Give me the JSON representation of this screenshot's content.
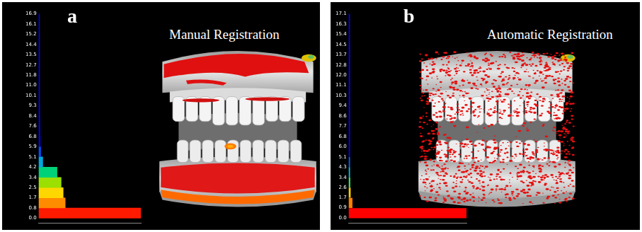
{
  "chart_data": [
    {
      "type": "histogram",
      "title": "Manual Registration",
      "annotations": [
        "a"
      ],
      "orientation": "horizontal",
      "grid": false,
      "tick_labels": "y",
      "bins": [
        0,
        0.845,
        1.69,
        2.535,
        3.38,
        4.225,
        5.07,
        5.915,
        6.76,
        7.605,
        8.45,
        9.295,
        10.14,
        10.985,
        11.83,
        12.675,
        13.52,
        14.365,
        15.21,
        16.055,
        16.9
      ],
      "values": [
        100,
        26,
        24,
        22,
        18,
        4,
        2,
        1.5,
        1.3,
        1.2,
        1.1,
        1,
        1,
        1,
        1,
        1,
        1,
        1,
        0.9,
        0.9
      ],
      "colors": [
        "#ff1a00",
        "#ff8c00",
        "#ffd700",
        "#9be000",
        "#00d27a",
        "#00a8e0",
        "#0050ff",
        "#0000ff",
        "#0000ff",
        "#0000ff",
        "#0000ff",
        "#0000ff",
        "#0000ff",
        "#0000ff",
        "#0000ff",
        "#0000ff",
        "#0000ff",
        "#0000ff",
        "#0000ff",
        "#0000ff"
      ],
      "xlim": [
        0,
        100
      ],
      "ylim": [
        0,
        16.9
      ],
      "yticks": [
        {
          "value": 0,
          "label": "0.0"
        },
        {
          "value": 0.845,
          "label": "0.8"
        },
        {
          "value": 1.69,
          "label": "1.7"
        },
        {
          "value": 2.535,
          "label": "2.5"
        },
        {
          "value": 3.38,
          "label": "3.4"
        },
        {
          "value": 4.225,
          "label": "4.2"
        },
        {
          "value": 5.07,
          "label": "5.1"
        },
        {
          "value": 5.915,
          "label": "5.9"
        },
        {
          "value": 6.76,
          "label": "6.8"
        },
        {
          "value": 7.605,
          "label": "7.6"
        },
        {
          "value": 8.44,
          "label": "8.4"
        },
        {
          "value": 9.295,
          "label": "9.3"
        },
        {
          "value": 10.14,
          "label": "10.1"
        },
        {
          "value": 10.985,
          "label": "11.0"
        },
        {
          "value": 11.83,
          "label": "11.8"
        },
        {
          "value": 12.675,
          "label": "12.7"
        },
        {
          "value": 13.52,
          "label": "13.5"
        },
        {
          "value": 14.365,
          "label": "14.4"
        },
        {
          "value": 15.21,
          "label": "15.2"
        },
        {
          "value": 16.055,
          "label": "16.1"
        },
        16.9
      ]
    },
    {
      "type": "histogram",
      "title": "Automatic Registration",
      "annotations": [
        "b"
      ],
      "orientation": "horizontal",
      "grid": false,
      "tick_labels": "y",
      "bins": [
        0,
        0.855,
        1.71,
        2.565,
        3.42,
        4.275,
        5.13,
        5.985,
        6.84,
        7.695,
        8.55,
        9.405,
        10.26,
        11.115,
        11.97,
        12.825,
        13.68,
        14.535,
        15.39,
        16.245,
        17.1
      ],
      "values": [
        100,
        3,
        1.5,
        1.2,
        1,
        1,
        1,
        1,
        1,
        1,
        1,
        1,
        1,
        1,
        1,
        1,
        1,
        0.9,
        0.9,
        0.9
      ],
      "colors": [
        "#ff0000",
        "#ff8000",
        "#ffd000",
        "#40e060",
        "#00c0e0",
        "#0060ff",
        "#0000ff",
        "#0000ff",
        "#0000ff",
        "#0000ff",
        "#0000ff",
        "#0000ff",
        "#0000ff",
        "#0000ff",
        "#0000ff",
        "#0000ff",
        "#0000ff",
        "#0000ff",
        "#0000ff",
        "#0000ff"
      ],
      "xlim": [
        0,
        100
      ],
      "ylim": [
        0,
        17.1
      ],
      "yticks": [
        {
          "value": 0,
          "label": "0.0"
        },
        0.9,
        {
          "value": 1.71,
          "label": "1.7"
        },
        {
          "value": 2.565,
          "label": "2.6"
        },
        {
          "value": 3.42,
          "label": "3.4"
        },
        {
          "value": 4.275,
          "label": "4.3"
        },
        {
          "value": 5.13,
          "label": "5.1"
        },
        {
          "value": 5.985,
          "label": "6.0"
        },
        {
          "value": 6.84,
          "label": "6.8"
        },
        {
          "value": 7.695,
          "label": "7.7"
        },
        {
          "value": 8.55,
          "label": "8.6"
        },
        {
          "value": 9.405,
          "label": "9.4"
        },
        {
          "value": 10.26,
          "label": "10.3"
        },
        {
          "value": 11.115,
          "label": "11.1"
        },
        {
          "value": 11.97,
          "label": "12.0"
        },
        {
          "value": 12.825,
          "label": "12.8"
        },
        {
          "value": 13.68,
          "label": "13.7"
        },
        {
          "value": 14.535,
          "label": "14.5"
        },
        {
          "value": 15.39,
          "label": "15.4"
        },
        {
          "value": 16.25,
          "label": "16.3"
        },
        17.1
      ]
    }
  ]
}
